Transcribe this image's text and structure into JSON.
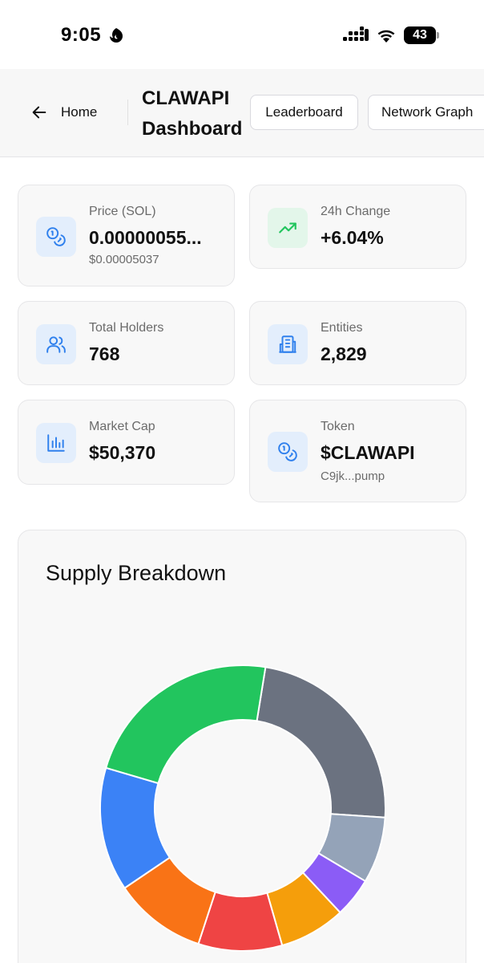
{
  "status_bar": {
    "time": "9:05",
    "battery": "43"
  },
  "header": {
    "back_label": "Home",
    "title": "CLAWAPI Dashboard",
    "nav": [
      "Leaderboard",
      "Network Graph"
    ]
  },
  "cards": {
    "price": {
      "label": "Price (SOL)",
      "value": "0.00000055...",
      "sub": "$0.00005037",
      "icon": "coins-icon"
    },
    "change": {
      "label": "24h Change",
      "value": "+6.04%",
      "icon": "trending-up-icon"
    },
    "holders": {
      "label": "Total Holders",
      "value": "768",
      "icon": "users-icon"
    },
    "entities": {
      "label": "Entities",
      "value": "2,829",
      "icon": "building-icon"
    },
    "market_cap": {
      "label": "Market Cap",
      "value": "$50,370",
      "icon": "bar-chart-icon"
    },
    "token": {
      "label": "Token",
      "value": "$CLAWAPI",
      "sub": "C9jk...pump",
      "icon": "coins-icon"
    }
  },
  "colors": {
    "accent_blue": "#2f80ed",
    "positive_green": "#22c55e"
  },
  "supply": {
    "title": "Supply Breakdown"
  },
  "chart_data": {
    "type": "pie",
    "title": "Supply Breakdown",
    "donut": true,
    "slices": [
      {
        "value": 23.5,
        "color": "#6b7280"
      },
      {
        "value": 7.5,
        "color": "#94a3b8"
      },
      {
        "value": 4.5,
        "color": "#8b5cf6"
      },
      {
        "value": 7.5,
        "color": "#f59e0b"
      },
      {
        "value": 9.5,
        "color": "#ef4444"
      },
      {
        "value": 10.5,
        "color": "#f97316"
      },
      {
        "value": 14.0,
        "color": "#3b82f6"
      },
      {
        "value": 23.0,
        "color": "#22c55e"
      }
    ]
  }
}
